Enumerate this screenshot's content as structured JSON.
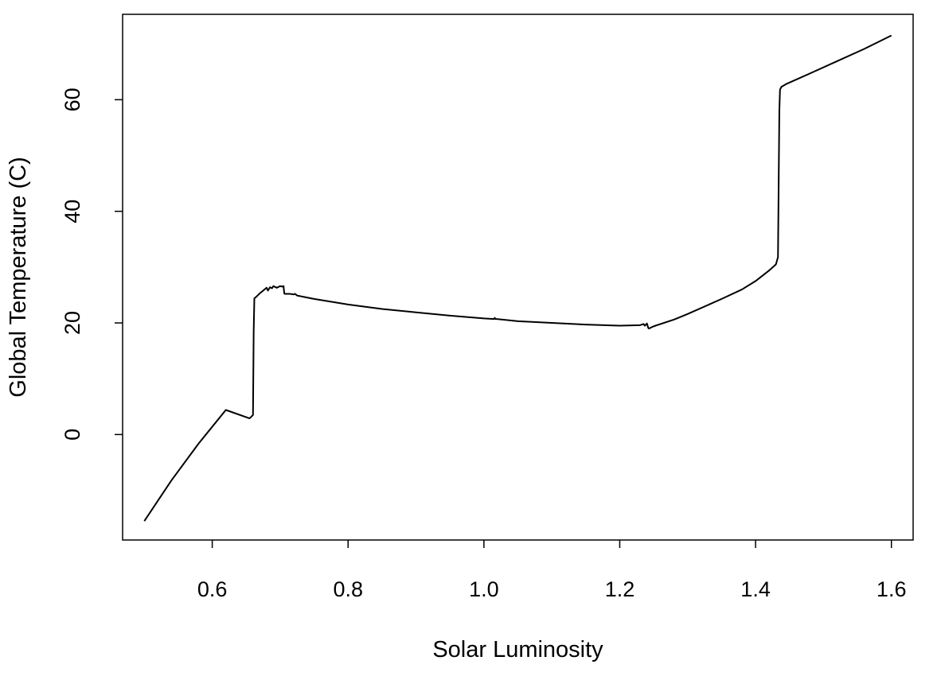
{
  "chart_data": {
    "type": "line",
    "title": "",
    "xlabel": "Solar Luminosity",
    "ylabel": "Global Temperature (C)",
    "xlim": [
      0.468,
      1.632
    ],
    "ylim": [
      -18.9,
      75.3
    ],
    "x_ticks": [
      0.6,
      0.8,
      1.0,
      1.2,
      1.4,
      1.6
    ],
    "x_tick_labels": [
      "0.6",
      "0.8",
      "1.0",
      "1.2",
      "1.4",
      "1.6"
    ],
    "y_ticks": [
      0,
      20,
      40,
      60
    ],
    "y_tick_labels": [
      "0",
      "20",
      "40",
      "60"
    ],
    "grid": false,
    "legend": "none",
    "series": [
      {
        "color": "#000000",
        "x": [
          0.5,
          0.54,
          0.58,
          0.62,
          0.655,
          0.66,
          0.661,
          0.662,
          0.665,
          0.67,
          0.675,
          0.68,
          0.682,
          0.685,
          0.688,
          0.69,
          0.695,
          0.7,
          0.703,
          0.705,
          0.706,
          0.707,
          0.71,
          0.715,
          0.72,
          0.722,
          0.725,
          0.75,
          0.8,
          0.85,
          0.9,
          0.95,
          1.0,
          1.015,
          1.016,
          1.017,
          1.019,
          1.05,
          1.1,
          1.15,
          1.2,
          1.23,
          1.235,
          1.237,
          1.24,
          1.242,
          1.243,
          1.25,
          1.28,
          1.3,
          1.35,
          1.38,
          1.4,
          1.42,
          1.43,
          1.433,
          1.434,
          1.435,
          1.436,
          1.438,
          1.445,
          1.48,
          1.52,
          1.56,
          1.6
        ],
        "y": [
          -15.5,
          -8.2,
          -1.6,
          4.4,
          2.9,
          3.5,
          18.5,
          24.4,
          24.7,
          25.3,
          25.8,
          26.3,
          25.8,
          26.4,
          26.2,
          26.6,
          26.3,
          26.6,
          26.5,
          26.6,
          25.3,
          25.2,
          25.2,
          25.2,
          25.1,
          25.2,
          24.9,
          24.3,
          23.3,
          22.5,
          21.9,
          21.3,
          20.8,
          20.7,
          20.9,
          20.7,
          20.7,
          20.3,
          20.0,
          19.7,
          19.5,
          19.6,
          19.8,
          19.5,
          19.9,
          19.1,
          19.0,
          19.4,
          20.6,
          21.6,
          24.3,
          26.0,
          27.5,
          29.4,
          30.5,
          31.8,
          45.0,
          58.0,
          61.8,
          62.3,
          62.8,
          64.7,
          66.9,
          69.1,
          71.5
        ]
      }
    ]
  }
}
